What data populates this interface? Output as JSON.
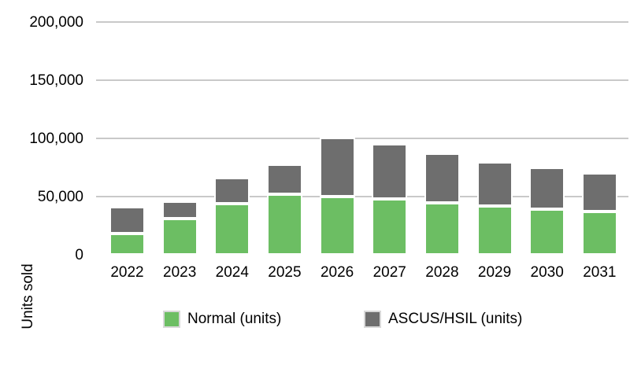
{
  "chart_data": {
    "type": "bar",
    "stacked": true,
    "title": "",
    "categories": [
      "2022",
      "2023",
      "2024",
      "2025",
      "2026",
      "2027",
      "2028",
      "2029",
      "2030",
      "2031"
    ],
    "series": [
      {
        "name": "Normal (units)",
        "color": "#6CBE63",
        "values": [
          18000,
          31000,
          44000,
          52000,
          50000,
          48000,
          44500,
          42000,
          39000,
          37000
        ]
      },
      {
        "name": "ASCUS/HSIL (units)",
        "color": "#6E6E6E",
        "values": [
          23000,
          15000,
          22000,
          26000,
          50500,
          47000,
          43000,
          38000,
          36000,
          33000
        ]
      }
    ],
    "xlabel": "",
    "ylabel": "Units sold",
    "ylim": [
      0,
      200000
    ],
    "yticks": [
      0,
      50000,
      100000,
      150000,
      200000
    ],
    "ytick_labels": [
      "0",
      "50,000",
      "100,000",
      "150,000",
      "200,000"
    ],
    "grid": true,
    "legend_position": "bottom"
  },
  "colors": {
    "normal": "#6CBE63",
    "ascus": "#6E6E6E",
    "gridline": "#C9C9C9",
    "text": "#000000",
    "background": "#FFFFFF",
    "bar_border": "#FFFFFF",
    "swatch_border": "#D8D8D8"
  }
}
